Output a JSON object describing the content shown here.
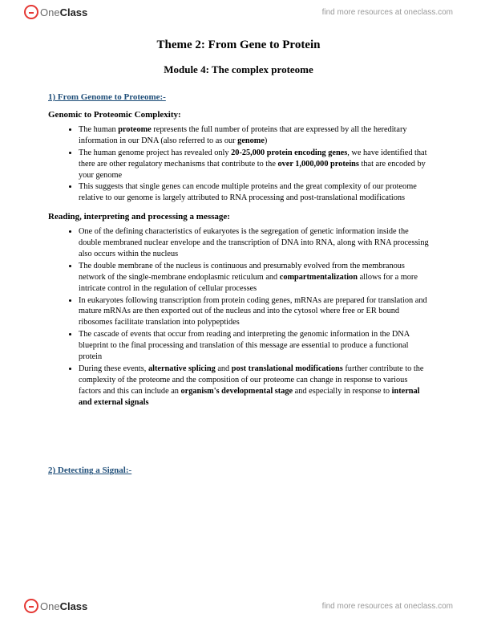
{
  "brand": {
    "name_part1": "One",
    "name_part2": "Class",
    "tagline": "find more resources at oneclass.com"
  },
  "doc": {
    "title": "Theme 2: From Gene to Protein",
    "subtitle": "Module 4: The complex proteome",
    "section1": {
      "heading": "1) From Genome to Proteome:-",
      "sub1": "Genomic to Proteomic Complexity:",
      "bullets1": [
        "The human <b>proteome</b> represents the full number of proteins that are expressed by all the hereditary information in our DNA (also referred to as our <b>genome</b>)",
        "The human genome project has revealed only <b>20-25,000 protein encoding genes</b>, we have identified that there are other regulatory mechanisms that contribute to the <b>over 1,000,000 proteins</b> that are encoded by your genome",
        "This suggests that single genes can encode multiple proteins and the great complexity of our proteome relative to our genome is largely attributed to RNA processing and post-translational modifications"
      ],
      "sub2": "Reading, interpreting and processing a message:",
      "bullets2": [
        "One of the defining characteristics of eukaryotes is the segregation of genetic information inside the double membraned nuclear envelope and the transcription of DNA into RNA, along with RNA processing also occurs within the nucleus",
        "The double membrane of the nucleus is continuous and presumably evolved from the membranous network of the single-membrane endoplasmic reticulum and <b>compartmentalization</b> allows for a more intricate control in the regulation of cellular processes",
        "In eukaryotes following transcription from protein coding genes, mRNAs are prepared for translation and mature mRNAs are then exported out of the nucleus and into the cytosol where free or ER bound ribosomes facilitate translation into polypeptides",
        "The cascade of events that occur from reading and interpreting the genomic information in the DNA blueprint to the final processing and translation of this message are essential to produce a functional protein",
        "During these events, <b>alternative splicing</b> and <b>post translational modifications</b> further contribute to the complexity of the proteome and the composition of our proteome can change in response to various factors and this can include an <b>organism's developmental stage</b> and especially in response to <b>internal and external signals</b>"
      ]
    },
    "section2": {
      "heading": "2) Detecting a Signal:-"
    }
  },
  "colors": {
    "section_head": "#1f4e79",
    "logo_red": "#e53935",
    "tagline_gray": "#9a9a9a"
  }
}
